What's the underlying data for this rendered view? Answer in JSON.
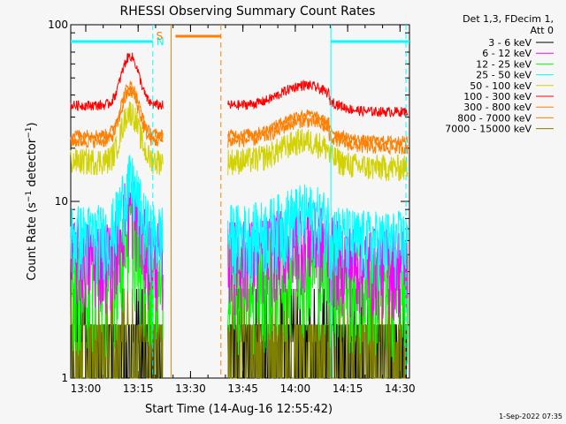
{
  "chart_data": {
    "type": "line",
    "title": "RHESSI Observing Summary Count Rates",
    "xlabel": "Start Time (14-Aug-16 12:55:42)",
    "ylabel_main": "Count Rate (s",
    "ylabel_sup1": "−1",
    "ylabel_mid": " detector",
    "ylabel_sup2": "−1",
    "ylabel_end": ")",
    "y_scale": "log",
    "ylim": [
      1,
      100
    ],
    "xlim_min": [
      0,
      97
    ],
    "x_ticks": [
      {
        "min": 4.3,
        "label": "13:00"
      },
      {
        "min": 19.3,
        "label": "13:15"
      },
      {
        "min": 34.3,
        "label": "13:30"
      },
      {
        "min": 49.3,
        "label": "13:45"
      },
      {
        "min": 64.3,
        "label": "14:00"
      },
      {
        "min": 79.3,
        "label": "14:15"
      },
      {
        "min": 94.3,
        "label": "14:30"
      }
    ],
    "y_ticks": [
      {
        "value": 1,
        "label": "1"
      },
      {
        "value": 10,
        "label": "10"
      },
      {
        "value": 100,
        "label": "100"
      }
    ],
    "legend_placement": "right",
    "legend_header": [
      "Det 1,3, FDecim 1,",
      "Att 0"
    ],
    "series": [
      {
        "name": "3 - 6 keV",
        "color": "#000000",
        "level": 1.5,
        "noise": 0.35
      },
      {
        "name": "6 - 12 keV",
        "color": "#ff00ff",
        "level": 5.0,
        "noise": 0.25
      },
      {
        "name": "12 - 25 keV",
        "color": "#00ff00",
        "level": 3.8,
        "noise": 0.3
      },
      {
        "name": "25 - 50 keV",
        "color": "#00ffff",
        "level": 6.5,
        "noise": 0.22
      },
      {
        "name": "50 - 100 keV",
        "color": "#d2d200",
        "level": 17.0,
        "noise": 0.08
      },
      {
        "name": "100 - 300 keV",
        "color": "#ff0000",
        "level": 35.0,
        "noise": 0.03
      },
      {
        "name": "300 - 800 keV",
        "color": "#ff7f00",
        "level": 22.0,
        "noise": 0.04
      },
      {
        "name": "800 - 7000 keV",
        "color": "#ff7f00",
        "level": 24.0,
        "noise": 0.03
      },
      {
        "name": "7000 - 15000 keV",
        "color": "#808000",
        "level": 1.4,
        "noise": 0.25
      }
    ],
    "intervals": [
      {
        "label": "N",
        "type": "night",
        "color": "#00ffff",
        "start_min": 23.5,
        "end_min": 23.5,
        "marker_from": 0,
        "marker_to": 23.5
      },
      {
        "label": "S",
        "type": "saa",
        "color": "#ff7f00",
        "start_min": 28,
        "end_min": 43,
        "marker_from": 30,
        "marker_to": 43
      },
      {
        "label": "",
        "type": "night",
        "color": "#00ffff",
        "start_min": 74.5,
        "end_min": 97,
        "marker_from": 74.5,
        "marker_to": 97
      }
    ],
    "data_segments": [
      [
        0,
        26.5
      ],
      [
        45,
        96.5
      ]
    ],
    "grid": false
  },
  "footer_stamp": "1-Sep-2022 07:35"
}
